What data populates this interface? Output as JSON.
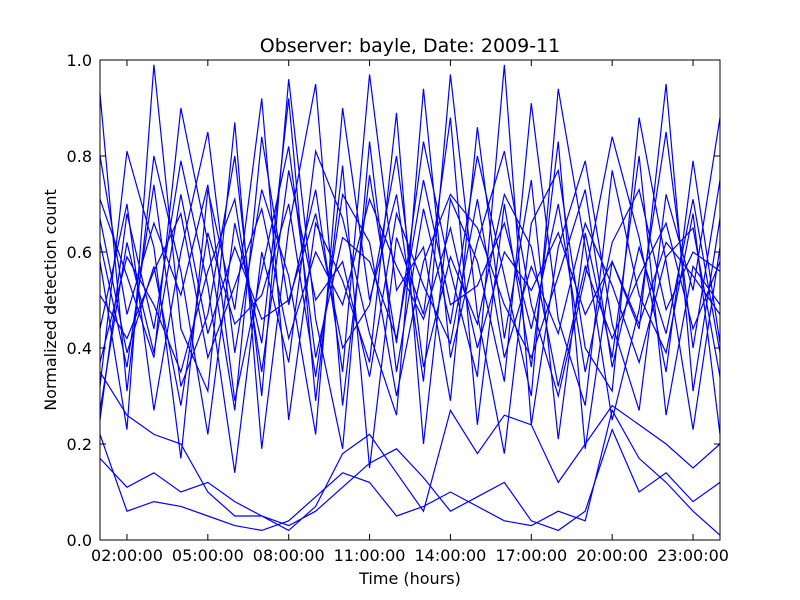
{
  "chart_data": {
    "type": "line",
    "title": "Observer: bayle, Date: 2009-11",
    "xlabel": "Time (hours)",
    "ylabel": "Normalized detection count",
    "xlim": [
      "01:00:00",
      "24:00:00"
    ],
    "ylim": [
      0.0,
      1.0
    ],
    "xticks": [
      "02:00:00",
      "05:00:00",
      "08:00:00",
      "11:00:00",
      "14:00:00",
      "17:00:00",
      "20:00:00",
      "23:00:00"
    ],
    "yticks": [
      "0.0",
      "0.2",
      "0.4",
      "0.6",
      "0.8",
      "1.0"
    ],
    "grid": false,
    "legend": "none",
    "line_color": "#0000ff",
    "x": [
      "01:00:00",
      "02:00:00",
      "03:00:00",
      "04:00:00",
      "05:00:00",
      "06:00:00",
      "07:00:00",
      "08:00:00",
      "09:00:00",
      "10:00:00",
      "11:00:00",
      "12:00:00",
      "13:00:00",
      "14:00:00",
      "15:00:00",
      "16:00:00",
      "17:00:00",
      "18:00:00",
      "19:00:00",
      "20:00:00",
      "21:00:00",
      "22:00:00",
      "23:00:00",
      "24:00:00"
    ],
    "series": [
      {
        "values": [
          0.93,
          0.31,
          0.8,
          0.56,
          0.22,
          0.66,
          0.41,
          0.92,
          0.29,
          0.78,
          0.15,
          0.63,
          0.47,
          0.88,
          0.24,
          0.7,
          0.36,
          0.83,
          0.19,
          0.58,
          0.44,
          0.95,
          0.31,
          0.67
        ]
      },
      {
        "values": [
          0.71,
          0.55,
          0.38,
          0.9,
          0.62,
          0.27,
          0.84,
          0.49,
          0.73,
          0.35,
          0.97,
          0.52,
          0.61,
          0.29,
          0.86,
          0.42,
          0.75,
          0.21,
          0.64,
          0.38,
          0.8,
          0.26,
          0.57,
          0.49
        ]
      },
      {
        "values": [
          0.32,
          0.81,
          0.61,
          0.17,
          0.73,
          0.48,
          0.92,
          0.25,
          0.66,
          0.54,
          0.37,
          0.89,
          0.2,
          0.71,
          0.58,
          0.33,
          0.91,
          0.46,
          0.28,
          0.77,
          0.51,
          0.39,
          0.68,
          0.22
        ]
      },
      {
        "values": [
          0.58,
          0.23,
          0.99,
          0.44,
          0.31,
          0.87,
          0.19,
          0.65,
          0.95,
          0.28,
          0.76,
          0.41,
          0.83,
          0.56,
          0.34,
          0.99,
          0.24,
          0.61,
          0.79,
          0.45,
          0.27,
          0.72,
          0.52,
          0.88
        ]
      },
      {
        "values": [
          0.25,
          0.68,
          0.44,
          0.79,
          0.53,
          0.14,
          0.6,
          0.37,
          0.81,
          0.67,
          0.43,
          0.26,
          0.94,
          0.38,
          0.62,
          0.81,
          0.49,
          0.3,
          0.55,
          0.84,
          0.63,
          0.35,
          0.79,
          0.41
        ]
      },
      {
        "values": [
          0.44,
          0.7,
          0.27,
          0.6,
          0.85,
          0.39,
          0.73,
          0.55,
          0.22,
          0.9,
          0.5,
          0.72,
          0.33,
          0.97,
          0.47,
          0.18,
          0.66,
          0.77,
          0.4,
          0.31,
          0.88,
          0.58,
          0.23,
          0.61
        ]
      },
      {
        "values": [
          0.62,
          0.36,
          0.74,
          0.32,
          0.47,
          0.8,
          0.3,
          0.96,
          0.46,
          0.19,
          0.83,
          0.35,
          0.69,
          0.45,
          0.8,
          0.55,
          0.3,
          0.94,
          0.61,
          0.25,
          0.48,
          0.85,
          0.4,
          0.75
        ]
      },
      {
        "values": [
          0.17,
          0.11,
          0.14,
          0.1,
          0.12,
          0.08,
          0.05,
          0.03,
          0.06,
          0.11,
          0.16,
          0.19,
          0.13,
          0.06,
          0.09,
          0.12,
          0.04,
          0.02,
          0.06,
          0.23,
          0.1,
          0.14,
          0.08,
          0.12
        ]
      },
      {
        "values": [
          0.22,
          0.06,
          0.08,
          0.07,
          0.05,
          0.03,
          0.02,
          0.04,
          0.09,
          0.14,
          0.12,
          0.05,
          0.07,
          0.1,
          0.07,
          0.04,
          0.03,
          0.06,
          0.04,
          0.27,
          0.17,
          0.12,
          0.06,
          0.01
        ]
      },
      {
        "values": [
          0.35,
          0.26,
          0.22,
          0.2,
          0.1,
          0.05,
          0.05,
          0.02,
          0.07,
          0.18,
          0.22,
          0.14,
          0.06,
          0.27,
          0.18,
          0.26,
          0.24,
          0.12,
          0.2,
          0.28,
          0.24,
          0.2,
          0.15,
          0.2
        ]
      },
      {
        "values": [
          0.51,
          0.42,
          0.56,
          0.68,
          0.38,
          0.53,
          0.69,
          0.42,
          0.6,
          0.49,
          0.71,
          0.57,
          0.46,
          0.65,
          0.4,
          0.6,
          0.52,
          0.64,
          0.47,
          0.58,
          0.45,
          0.62,
          0.55,
          0.47
        ]
      },
      {
        "values": [
          0.37,
          0.59,
          0.49,
          0.35,
          0.56,
          0.71,
          0.35,
          0.77,
          0.5,
          0.58,
          0.34,
          0.68,
          0.53,
          0.41,
          0.71,
          0.38,
          0.57,
          0.43,
          0.66,
          0.53,
          0.37,
          0.59,
          0.65,
          0.34
        ]
      },
      {
        "values": [
          0.8,
          0.47,
          0.66,
          0.51,
          0.74,
          0.29,
          0.56,
          0.82,
          0.38,
          0.63,
          0.58,
          0.42,
          0.75,
          0.49,
          0.53,
          0.66,
          0.44,
          0.7,
          0.35,
          0.62,
          0.73,
          0.48,
          0.6,
          0.56
        ]
      },
      {
        "values": [
          0.27,
          0.62,
          0.39,
          0.72,
          0.43,
          0.61,
          0.46,
          0.5,
          0.68,
          0.4,
          0.49,
          0.8,
          0.36,
          0.59,
          0.45,
          0.72,
          0.61,
          0.32,
          0.57,
          0.42,
          0.55,
          0.66,
          0.44,
          0.58
        ]
      },
      {
        "values": [
          0.67,
          0.39,
          0.57,
          0.28,
          0.64,
          0.45,
          0.51,
          0.7,
          0.34,
          0.72,
          0.62,
          0.3,
          0.58,
          0.72,
          0.65,
          0.49,
          0.38,
          0.55,
          0.73,
          0.36,
          0.61,
          0.43,
          0.71,
          0.39
        ]
      }
    ]
  }
}
